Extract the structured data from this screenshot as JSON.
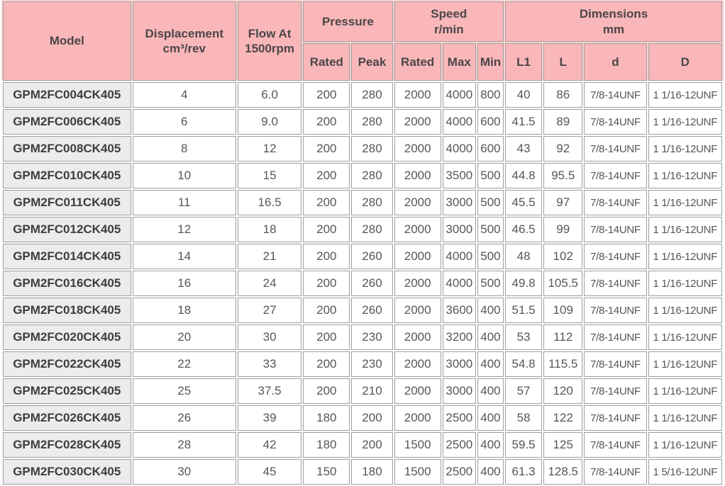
{
  "table": {
    "headers": {
      "model": "Model",
      "displacement_line1": "Displacement",
      "displacement_line2": "cm³/rev",
      "flow_line1": "Flow At",
      "flow_line2": "1500rpm",
      "pressure": "Pressure",
      "speed_line1": "Speed",
      "speed_line2": "r/min",
      "dimensions_line1": "Dimensions",
      "dimensions_line2": "mm",
      "sub": {
        "pressure_rated": "Rated",
        "pressure_peak": "Peak",
        "speed_rated": "Rated",
        "speed_max": "Max",
        "speed_min": "Min",
        "l1": "L1",
        "l": "L",
        "d": "d",
        "D": "D"
      }
    },
    "column_keys": [
      "model",
      "displacement",
      "flow",
      "pressure_rated",
      "pressure_peak",
      "speed_rated",
      "speed_max",
      "speed_min",
      "l1",
      "l",
      "d",
      "D"
    ],
    "rows": [
      {
        "model": "GPM2FC004CK405",
        "displacement": "4",
        "flow": "6.0",
        "pressure_rated": "200",
        "pressure_peak": "280",
        "speed_rated": "2000",
        "speed_max": "4000",
        "speed_min": "800",
        "l1": "40",
        "l": "86",
        "d": "7/8-14UNF",
        "D": "1 1/16-12UNF"
      },
      {
        "model": "GPM2FC006CK405",
        "displacement": "6",
        "flow": "9.0",
        "pressure_rated": "200",
        "pressure_peak": "280",
        "speed_rated": "2000",
        "speed_max": "4000",
        "speed_min": "600",
        "l1": "41.5",
        "l": "89",
        "d": "7/8-14UNF",
        "D": "1 1/16-12UNF"
      },
      {
        "model": "GPM2FC008CK405",
        "displacement": "8",
        "flow": "12",
        "pressure_rated": "200",
        "pressure_peak": "280",
        "speed_rated": "2000",
        "speed_max": "4000",
        "speed_min": "600",
        "l1": "43",
        "l": "92",
        "d": "7/8-14UNF",
        "D": "1 1/16-12UNF"
      },
      {
        "model": "GPM2FC010CK405",
        "displacement": "10",
        "flow": "15",
        "pressure_rated": "200",
        "pressure_peak": "280",
        "speed_rated": "2000",
        "speed_max": "3500",
        "speed_min": "500",
        "l1": "44.8",
        "l": "95.5",
        "d": "7/8-14UNF",
        "D": "1 1/16-12UNF"
      },
      {
        "model": "GPM2FC011CK405",
        "displacement": "11",
        "flow": "16.5",
        "pressure_rated": "200",
        "pressure_peak": "280",
        "speed_rated": "2000",
        "speed_max": "3000",
        "speed_min": "500",
        "l1": "45.5",
        "l": "97",
        "d": "7/8-14UNF",
        "D": "1 1/16-12UNF"
      },
      {
        "model": "GPM2FC012CK405",
        "displacement": "12",
        "flow": "18",
        "pressure_rated": "200",
        "pressure_peak": "280",
        "speed_rated": "2000",
        "speed_max": "3000",
        "speed_min": "500",
        "l1": "46.5",
        "l": "99",
        "d": "7/8-14UNF",
        "D": "1 1/16-12UNF"
      },
      {
        "model": "GPM2FC014CK405",
        "displacement": "14",
        "flow": "21",
        "pressure_rated": "200",
        "pressure_peak": "260",
        "speed_rated": "2000",
        "speed_max": "4000",
        "speed_min": "500",
        "l1": "48",
        "l": "102",
        "d": "7/8-14UNF",
        "D": "1 1/16-12UNF"
      },
      {
        "model": "GPM2FC016CK405",
        "displacement": "16",
        "flow": "24",
        "pressure_rated": "200",
        "pressure_peak": "260",
        "speed_rated": "2000",
        "speed_max": "4000",
        "speed_min": "500",
        "l1": "49.8",
        "l": "105.5",
        "d": "7/8-14UNF",
        "D": "1 1/16-12UNF"
      },
      {
        "model": "GPM2FC018CK405",
        "displacement": "18",
        "flow": "27",
        "pressure_rated": "200",
        "pressure_peak": "260",
        "speed_rated": "2000",
        "speed_max": "3600",
        "speed_min": "400",
        "l1": "51.5",
        "l": "109",
        "d": "7/8-14UNF",
        "D": "1 1/16-12UNF"
      },
      {
        "model": "GPM2FC020CK405",
        "displacement": "20",
        "flow": "30",
        "pressure_rated": "200",
        "pressure_peak": "230",
        "speed_rated": "2000",
        "speed_max": "3200",
        "speed_min": "400",
        "l1": "53",
        "l": "112",
        "d": "7/8-14UNF",
        "D": "1 1/16-12UNF"
      },
      {
        "model": "GPM2FC022CK405",
        "displacement": "22",
        "flow": "33",
        "pressure_rated": "200",
        "pressure_peak": "230",
        "speed_rated": "2000",
        "speed_max": "3000",
        "speed_min": "400",
        "l1": "54.8",
        "l": "115.5",
        "d": "7/8-14UNF",
        "D": "1 1/16-12UNF"
      },
      {
        "model": "GPM2FC025CK405",
        "displacement": "25",
        "flow": "37.5",
        "pressure_rated": "200",
        "pressure_peak": "210",
        "speed_rated": "2000",
        "speed_max": "3000",
        "speed_min": "400",
        "l1": "57",
        "l": "120",
        "d": "7/8-14UNF",
        "D": "1 1/16-12UNF"
      },
      {
        "model": "GPM2FC026CK405",
        "displacement": "26",
        "flow": "39",
        "pressure_rated": "180",
        "pressure_peak": "200",
        "speed_rated": "2000",
        "speed_max": "2500",
        "speed_min": "400",
        "l1": "58",
        "l": "122",
        "d": "7/8-14UNF",
        "D": "1 1/16-12UNF"
      },
      {
        "model": "GPM2FC028CK405",
        "displacement": "28",
        "flow": "42",
        "pressure_rated": "180",
        "pressure_peak": "200",
        "speed_rated": "1500",
        "speed_max": "2500",
        "speed_min": "400",
        "l1": "59.5",
        "l": "125",
        "d": "7/8-14UNF",
        "D": "1 1/16-12UNF"
      },
      {
        "model": "GPM2FC030CK405",
        "displacement": "30",
        "flow": "45",
        "pressure_rated": "150",
        "pressure_peak": "180",
        "speed_rated": "1500",
        "speed_max": "2500",
        "speed_min": "400",
        "l1": "61.3",
        "l": "128.5",
        "d": "7/8-14UNF",
        "D": "1 5/16-12UNF"
      }
    ]
  },
  "colors": {
    "header_bg": "#f9b7b9",
    "header_gap_bg": "#fbd2d3",
    "model_column_bg": "#ececec",
    "grid_border": "#9e9e9e",
    "header_text": "#4b4648",
    "body_text": "#565658"
  }
}
